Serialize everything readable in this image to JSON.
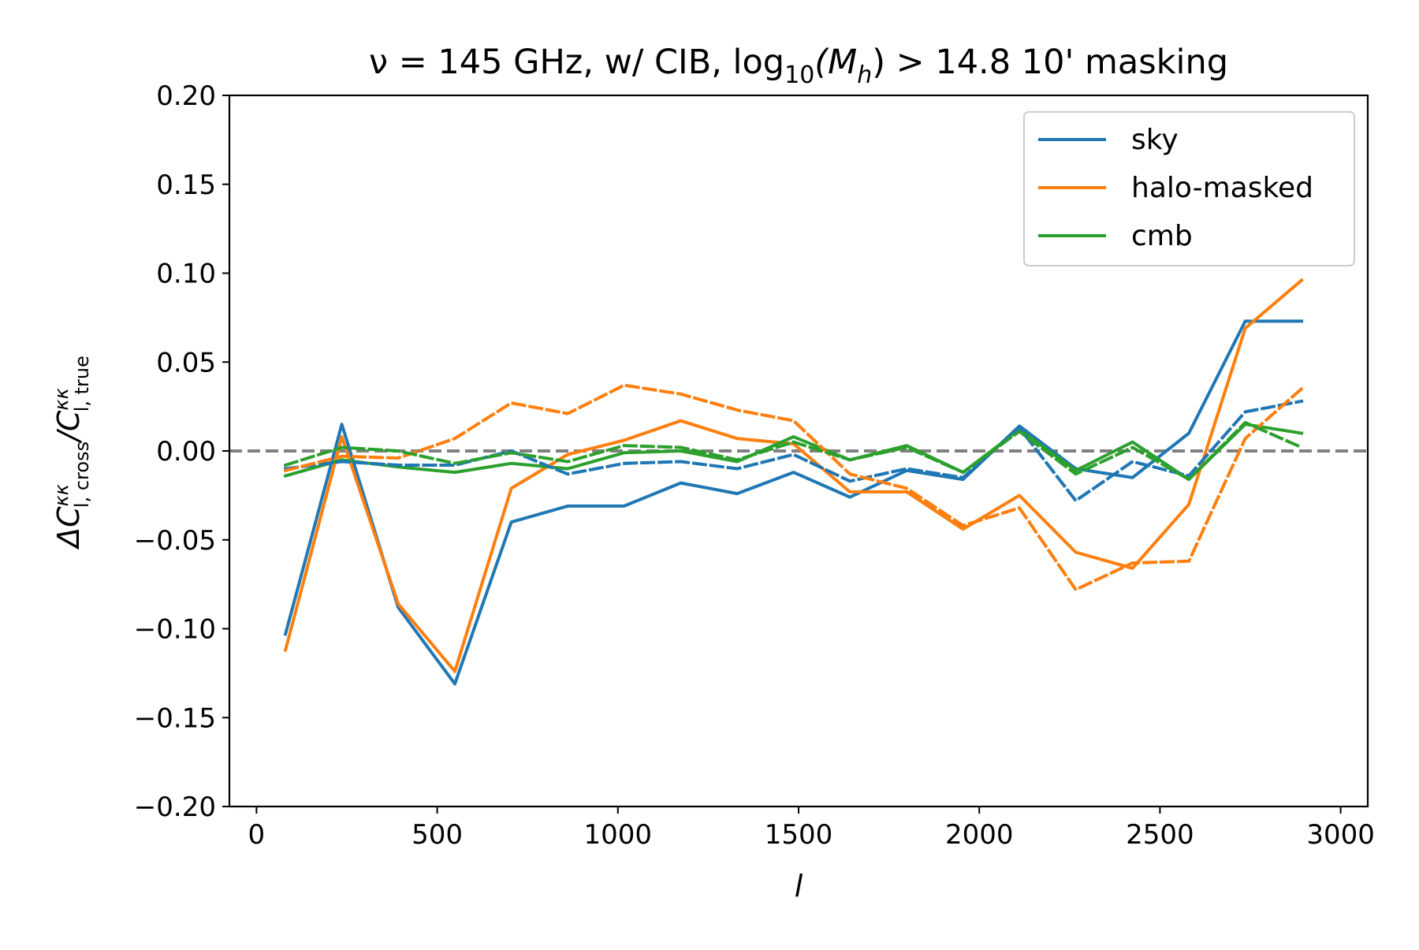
{
  "chart_data": {
    "type": "line",
    "title": {
      "prefix": "ν = 145 GHz, w/ CIB, log",
      "sub": "10",
      "mid": "(M",
      "mid_sub": "h",
      "suffix": ") > 14.8 10' masking"
    },
    "xlabel": "l",
    "ylabel": {
      "delta": "ΔC",
      "sup1": "κκ",
      "sub1": "l, cross",
      "slash": "/C",
      "sup2": "κκ",
      "sub2": "l, true"
    },
    "xlim": [
      -75,
      3075
    ],
    "ylim": [
      -0.2,
      0.2
    ],
    "xticks": [
      0,
      500,
      1000,
      1500,
      2000,
      2500,
      3000
    ],
    "xtick_labels": [
      "0",
      "500",
      "1000",
      "1500",
      "2000",
      "2500",
      "3000"
    ],
    "yticks": [
      -0.2,
      -0.15,
      -0.1,
      -0.05,
      0.0,
      0.05,
      0.1,
      0.15,
      0.2
    ],
    "ytick_labels": [
      "−0.20",
      "−0.15",
      "−0.10",
      "−0.05",
      "0.00",
      "0.05",
      "0.10",
      "0.15",
      "0.20"
    ],
    "reference_line": {
      "y": 0.0,
      "color": "#808080",
      "style": "dashed"
    },
    "legend_position": "top-right",
    "grid": false,
    "x": [
      80,
      236,
      392,
      549,
      705,
      861,
      1017,
      1174,
      1330,
      1486,
      1642,
      1799,
      1955,
      2111,
      2267,
      2424,
      2580,
      2736,
      2892
    ],
    "series": [
      {
        "name": "sky",
        "legend": true,
        "color": "#1f77b4",
        "style": "solid",
        "values": [
          -0.103,
          0.015,
          -0.088,
          -0.131,
          -0.04,
          -0.031,
          -0.031,
          -0.018,
          -0.024,
          -0.012,
          -0.026,
          -0.011,
          -0.016,
          0.014,
          -0.01,
          -0.015,
          0.01,
          0.073,
          0.073
        ]
      },
      {
        "name": "halo-masked",
        "legend": true,
        "color": "#ff7f0e",
        "style": "solid",
        "values": [
          -0.112,
          0.008,
          -0.086,
          -0.124,
          -0.021,
          -0.002,
          0.006,
          0.017,
          0.007,
          0.004,
          -0.023,
          -0.023,
          -0.044,
          -0.025,
          -0.057,
          -0.066,
          -0.03,
          0.069,
          0.096
        ]
      },
      {
        "name": "cmb",
        "legend": true,
        "color": "#2ca02c",
        "style": "solid",
        "values": [
          -0.014,
          -0.005,
          -0.009,
          -0.012,
          -0.007,
          -0.01,
          -0.001,
          0.0,
          -0.006,
          0.008,
          -0.005,
          0.003,
          -0.012,
          0.012,
          -0.011,
          0.005,
          -0.016,
          0.015,
          0.01
        ]
      },
      {
        "legend": false,
        "color": "#1f77b4",
        "style": "dashed",
        "values": [
          -0.01,
          -0.006,
          -0.008,
          -0.008,
          0.0,
          -0.013,
          -0.007,
          -0.006,
          -0.01,
          -0.002,
          -0.017,
          -0.01,
          -0.015,
          0.013,
          -0.028,
          -0.006,
          -0.014,
          0.022,
          0.028
        ]
      },
      {
        "legend": false,
        "color": "#ff7f0e",
        "style": "dashed",
        "values": [
          -0.011,
          -0.003,
          -0.004,
          0.007,
          0.027,
          0.021,
          0.037,
          0.032,
          0.023,
          0.017,
          -0.013,
          -0.021,
          -0.042,
          -0.032,
          -0.078,
          -0.063,
          -0.062,
          0.007,
          0.035
        ]
      },
      {
        "legend": false,
        "color": "#2ca02c",
        "style": "dashed",
        "values": [
          -0.008,
          0.002,
          0.0,
          -0.007,
          -0.001,
          -0.006,
          0.003,
          0.002,
          -0.005,
          0.005,
          -0.005,
          0.002,
          -0.012,
          0.011,
          -0.013,
          0.002,
          -0.016,
          0.016,
          0.002
        ]
      }
    ]
  }
}
